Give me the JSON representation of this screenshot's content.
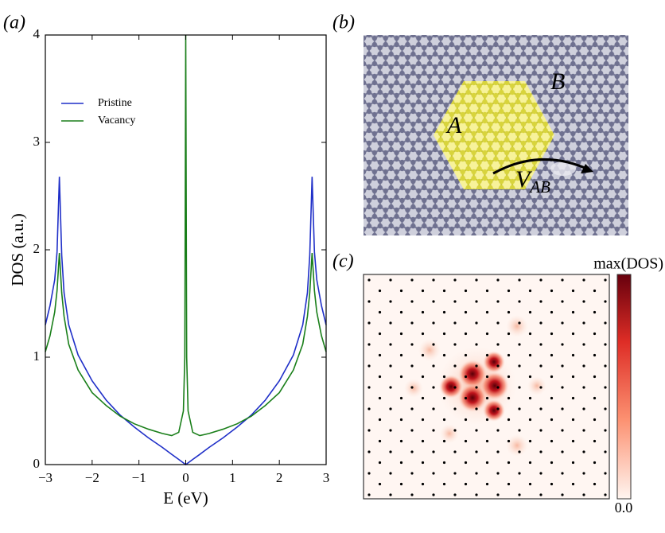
{
  "panel_labels": [
    "(a)",
    "(b)",
    "(c)"
  ],
  "chart_data": {
    "type": "line",
    "xlabel": "E (eV)",
    "ylabel": "DOS (a.u.)",
    "x": [
      -3,
      -2.9,
      -2.8,
      -2.75,
      -2.7,
      -2.65,
      -2.6,
      -2.5,
      -2.3,
      -2,
      -1.7,
      -1.4,
      -1.1,
      -0.8,
      -0.5,
      -0.3,
      -0.15,
      -0.05,
      -0.02,
      0,
      0.02,
      0.05,
      0.15,
      0.3,
      0.5,
      0.8,
      1.1,
      1.4,
      1.7,
      2,
      2.3,
      2.5,
      2.6,
      2.65,
      2.7,
      2.75,
      2.8,
      2.9,
      3
    ],
    "series": [
      {
        "name": "Pristine",
        "color": "#1f2fc8",
        "values": [
          1.3,
          1.48,
          1.72,
          1.98,
          2.68,
          1.95,
          1.6,
          1.3,
          1.02,
          0.78,
          0.6,
          0.46,
          0.35,
          0.25,
          0.16,
          0.095,
          0.048,
          0.016,
          0.006,
          0,
          0.006,
          0.016,
          0.048,
          0.095,
          0.16,
          0.25,
          0.35,
          0.46,
          0.6,
          0.78,
          1.02,
          1.3,
          1.6,
          1.95,
          2.68,
          1.98,
          1.72,
          1.48,
          1.3
        ]
      },
      {
        "name": "Vacancy",
        "color": "#1a7f1a",
        "values": [
          1.05,
          1.2,
          1.42,
          1.62,
          1.97,
          1.6,
          1.38,
          1.12,
          0.88,
          0.67,
          0.55,
          0.45,
          0.38,
          0.33,
          0.29,
          0.27,
          0.3,
          0.5,
          1.0,
          4,
          1.0,
          0.5,
          0.3,
          0.27,
          0.29,
          0.33,
          0.38,
          0.45,
          0.55,
          0.67,
          0.88,
          1.12,
          1.38,
          1.6,
          1.97,
          1.62,
          1.42,
          1.2,
          1.05
        ]
      }
    ],
    "xlim": [
      -3,
      3
    ],
    "ylim": [
      0,
      4
    ],
    "xticks": [
      {
        "value": -3,
        "label": "−3"
      },
      {
        "value": -2,
        "label": "−2"
      },
      {
        "value": -1,
        "label": "−1"
      },
      0,
      1,
      2,
      3
    ],
    "yticks": [
      0,
      1,
      2,
      3,
      4
    ],
    "legend": "upper left"
  },
  "lattice_diagram": {
    "region_a": "A",
    "region_b": "B",
    "coupling": {
      "symbol": "V",
      "subscript": "AB"
    }
  },
  "dos_map": {
    "colorbar_label": "max(DOS)",
    "colorbar_min": "0.0"
  }
}
